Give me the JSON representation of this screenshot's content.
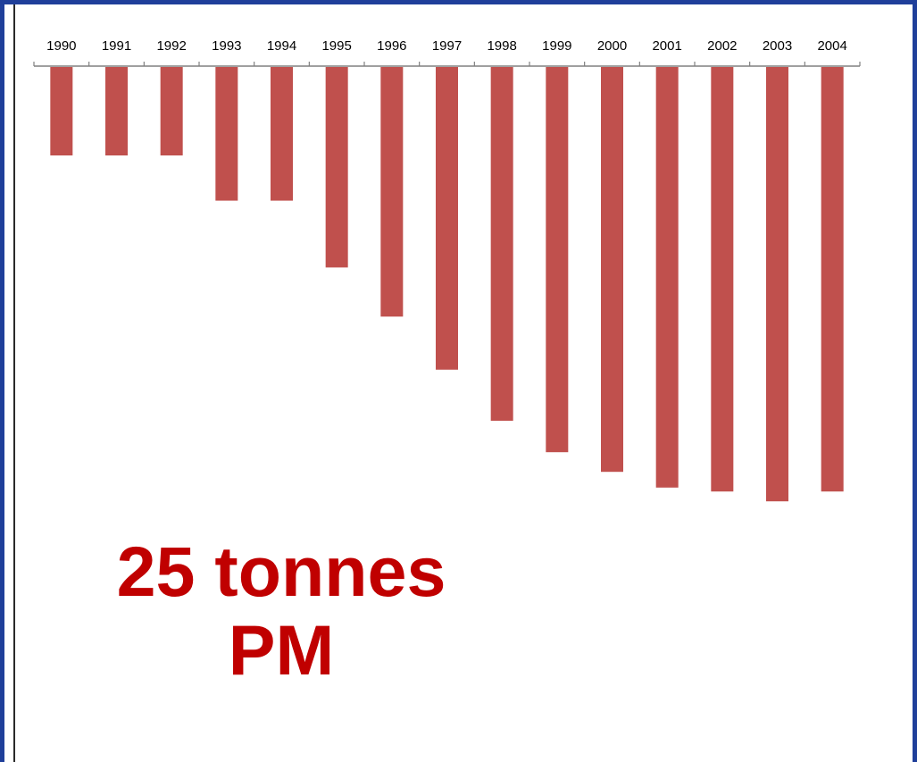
{
  "chart_data": {
    "type": "bar",
    "orientation": "downward",
    "categories": [
      "1990",
      "1991",
      "1992",
      "1993",
      "1994",
      "1995",
      "1996",
      "1997",
      "1998",
      "1999",
      "2000",
      "2001",
      "2002",
      "2003",
      "2004"
    ],
    "values": [
      4.5,
      4.5,
      4.5,
      6.8,
      6.8,
      10.2,
      12.7,
      15.4,
      18.0,
      19.6,
      20.6,
      21.4,
      21.6,
      22.1,
      21.6
    ],
    "ylim": [
      0,
      25
    ],
    "bar_color": "#c0504d",
    "title": "",
    "xlabel": "",
    "ylabel": "",
    "grid": false,
    "legend": "none"
  },
  "annotation": {
    "line1": "25 tonnes",
    "line2": "PM",
    "color": "#c00000"
  }
}
